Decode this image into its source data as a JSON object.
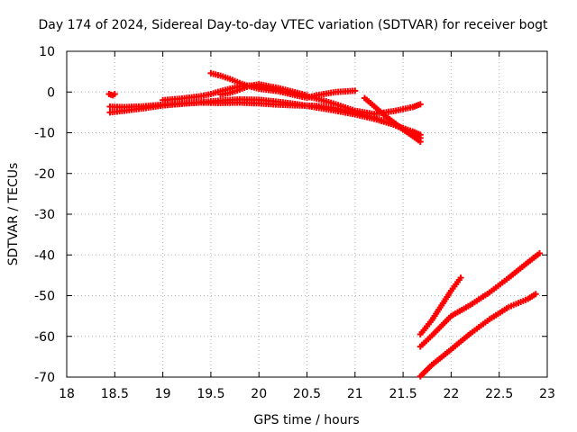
{
  "chart_data": {
    "type": "scatter",
    "title": "Day 174 of 2024, Sidereal Day-to-day VTEC variation (SDTVAR) for receiver bogt",
    "xlabel": "GPS time / hours",
    "ylabel": "SDTVAR / TECUs",
    "xlim": [
      18,
      23
    ],
    "ylim": [
      -70,
      10
    ],
    "xticks": [
      "18",
      "18.5",
      "19",
      "19.5",
      "20",
      "20.5",
      "21",
      "21.5",
      "22",
      "22.5",
      "23"
    ],
    "yticks": [
      "10",
      "0",
      "-10",
      "-20",
      "-30",
      "-40",
      "-50",
      "-60",
      "-70"
    ],
    "grid": true,
    "legend": "none",
    "marker": "plus",
    "colors": {
      "series": "#ff0000",
      "grid": "#b0b0b0",
      "axes": "#000000"
    },
    "series": [
      {
        "x": [
          18.44,
          18.48,
          18.5
        ],
        "y": [
          -0.5,
          -0.8,
          -0.5
        ]
      },
      {
        "x": [
          18.45,
          18.6,
          18.8,
          19.0,
          19.2,
          19.4,
          19.6,
          19.8,
          20.0,
          20.2,
          20.4,
          20.6,
          20.8,
          21.0,
          21.2,
          21.4,
          21.6,
          21.68
        ],
        "y": [
          -5.0,
          -4.6,
          -4.0,
          -3.3,
          -2.9,
          -2.5,
          -2.1,
          -1.8,
          -1.9,
          -2.4,
          -3.0,
          -3.8,
          -4.6,
          -5.5,
          -6.6,
          -8.0,
          -9.7,
          -10.5
        ]
      },
      {
        "x": [
          18.45,
          18.6,
          18.8,
          19.0,
          19.2,
          19.4,
          19.6,
          19.8,
          20.0,
          20.2,
          20.4,
          20.6,
          20.8,
          21.0,
          21.2,
          21.4,
          21.6,
          21.68
        ],
        "y": [
          -3.6,
          -3.7,
          -3.5,
          -3.1,
          -2.8,
          -2.6,
          -2.7,
          -2.6,
          -2.8,
          -3.1,
          -3.3,
          -3.4,
          -4.0,
          -5.1,
          -6.3,
          -8.0,
          -10.2,
          -11.3
        ]
      },
      {
        "x": [
          19.0,
          19.2,
          19.4,
          19.5,
          19.6,
          19.7,
          19.8,
          19.9,
          20.0,
          20.2,
          20.4,
          20.6,
          20.8,
          21.0,
          21.2,
          21.4,
          21.6,
          21.68
        ],
        "y": [
          -2.0,
          -1.6,
          -1.0,
          -0.5,
          0.2,
          0.8,
          1.4,
          1.6,
          1.3,
          0.5,
          -0.5,
          -1.6,
          -3.0,
          -4.6,
          -5.4,
          -4.7,
          -3.7,
          -3.0
        ]
      },
      {
        "x": [
          19.5,
          19.6,
          19.7,
          19.8,
          19.9,
          20.0,
          20.2,
          20.4,
          20.5,
          20.6,
          20.8,
          21.0
        ],
        "y": [
          4.6,
          4.0,
          3.2,
          2.2,
          1.4,
          0.8,
          0.2,
          -0.9,
          -1.4,
          -0.8,
          0.0,
          0.3
        ]
      },
      {
        "x": [
          19.6,
          19.7,
          19.8,
          19.9,
          20.0,
          20.2,
          20.4,
          20.5
        ],
        "y": [
          -0.6,
          -0.2,
          0.6,
          1.5,
          1.9,
          1.0,
          -0.2,
          -0.8
        ]
      },
      {
        "x": [
          21.1,
          21.2,
          21.3,
          21.4,
          21.5,
          21.6,
          21.68
        ],
        "y": [
          -1.5,
          -3.5,
          -5.6,
          -7.4,
          -9.2,
          -10.8,
          -12.2
        ]
      },
      {
        "x": [
          21.68,
          21.8,
          21.9,
          22.0,
          22.1
        ],
        "y": [
          -59.5,
          -56.0,
          -52.4,
          -48.8,
          -45.6
        ]
      },
      {
        "x": [
          21.68,
          21.8,
          22.0,
          22.2,
          22.4,
          22.6,
          22.8,
          22.92
        ],
        "y": [
          -62.5,
          -59.8,
          -55.0,
          -52.3,
          -49.2,
          -45.6,
          -41.8,
          -39.6
        ]
      },
      {
        "x": [
          21.68,
          21.8,
          22.0,
          22.2,
          22.4,
          22.6,
          22.8,
          22.88
        ],
        "y": [
          -69.8,
          -67.0,
          -63.2,
          -59.3,
          -55.8,
          -52.8,
          -50.8,
          -49.6
        ]
      }
    ]
  }
}
